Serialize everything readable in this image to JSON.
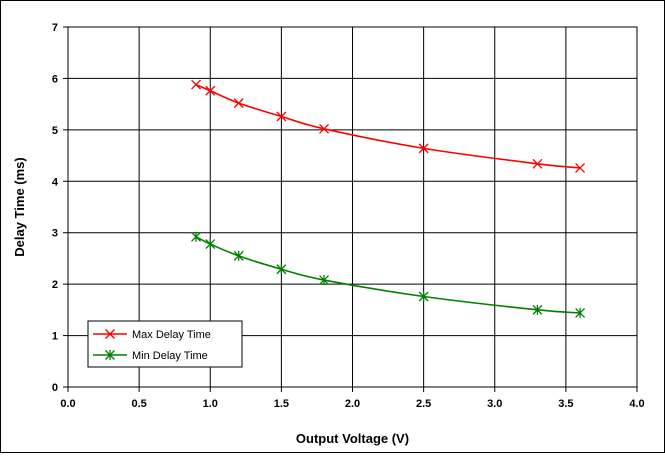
{
  "chart_data": {
    "type": "line",
    "title": "",
    "xlabel": "Output Voltage (V)",
    "ylabel": "Delay Time (ms)",
    "xlim": [
      0,
      4
    ],
    "ylim": [
      0,
      7
    ],
    "x_ticks": [
      "0.0",
      "0.5",
      "1.0",
      "1.5",
      "2.0",
      "2.5",
      "3.0",
      "3.5",
      "4.0"
    ],
    "y_ticks": [
      "0",
      "1",
      "2",
      "3",
      "4",
      "5",
      "6",
      "7"
    ],
    "grid": true,
    "legend_position": "bottom-left",
    "series": [
      {
        "name": "Max Delay Time",
        "color": "#ff0000",
        "marker": "x",
        "x": [
          0.9,
          1.0,
          1.2,
          1.5,
          1.8,
          2.5,
          3.3,
          3.6
        ],
        "y": [
          5.88,
          5.76,
          5.52,
          5.26,
          5.02,
          4.64,
          4.34,
          4.26
        ]
      },
      {
        "name": "Min Delay Time",
        "color": "#008000",
        "marker": "asterisk",
        "x": [
          0.9,
          1.0,
          1.2,
          1.5,
          1.8,
          2.5,
          3.3,
          3.6
        ],
        "y": [
          2.92,
          2.78,
          2.55,
          2.29,
          2.08,
          1.76,
          1.5,
          1.44
        ]
      }
    ]
  }
}
